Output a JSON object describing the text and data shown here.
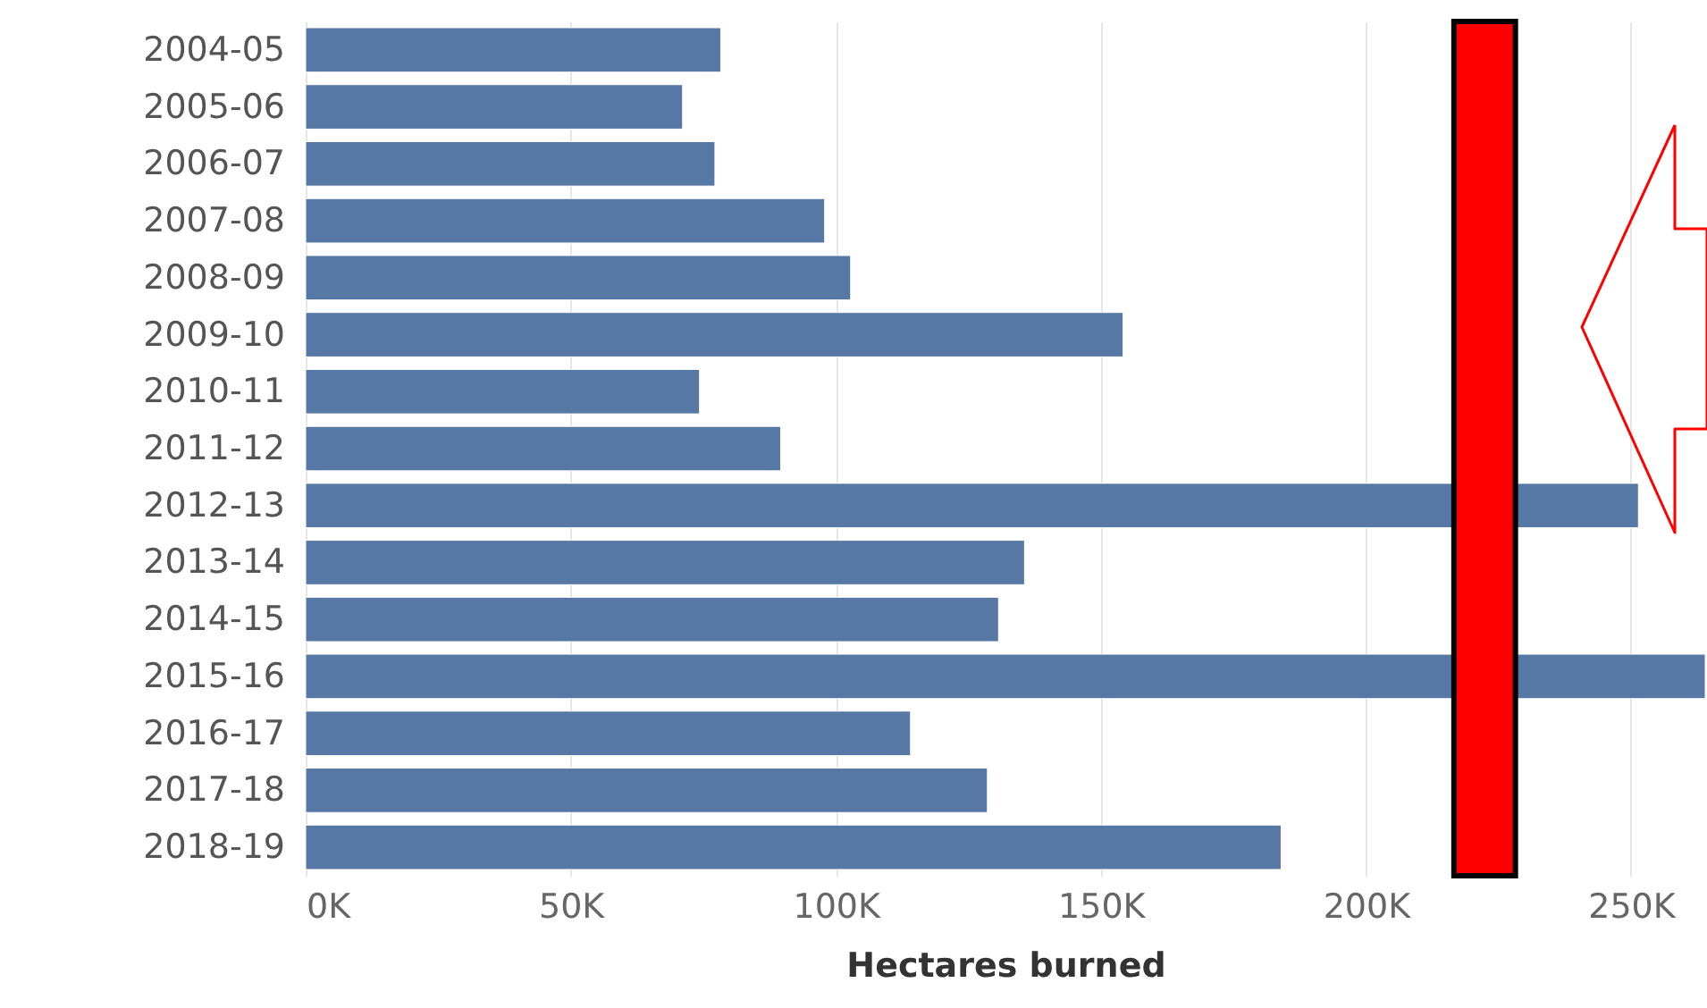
{
  "chart_data": {
    "type": "bar",
    "orientation": "horizontal",
    "xlabel": "Hectares burned",
    "categories": [
      "2004-05",
      "2005-06",
      "2006-07",
      "2007-08",
      "2008-09",
      "2009-10",
      "2010-11",
      "2011-12",
      "2012-13",
      "2013-14",
      "2014-15",
      "2015-16",
      "2016-17",
      "2017-18",
      "2018-19"
    ],
    "values": [
      78300,
      71100,
      77200,
      97900,
      102800,
      154200,
      74300,
      89600,
      251400,
      135600,
      130700,
      264000,
      114100,
      128600,
      184000
    ],
    "color": "#5778a4",
    "xlim": [
      0,
      264000
    ],
    "xticks": [
      {
        "value": 0,
        "label": "0K"
      },
      {
        "value": 50000,
        "label": "50K"
      },
      {
        "value": 100000,
        "label": "100K"
      },
      {
        "value": 150000,
        "label": "150K"
      },
      {
        "value": 200000,
        "label": "200K"
      },
      {
        "value": 250000,
        "label": "250K"
      }
    ],
    "bands": [
      {
        "axis": "x",
        "from": 216600,
        "to": 228200,
        "color": "#ff0000"
      }
    ],
    "grid": "x"
  }
}
